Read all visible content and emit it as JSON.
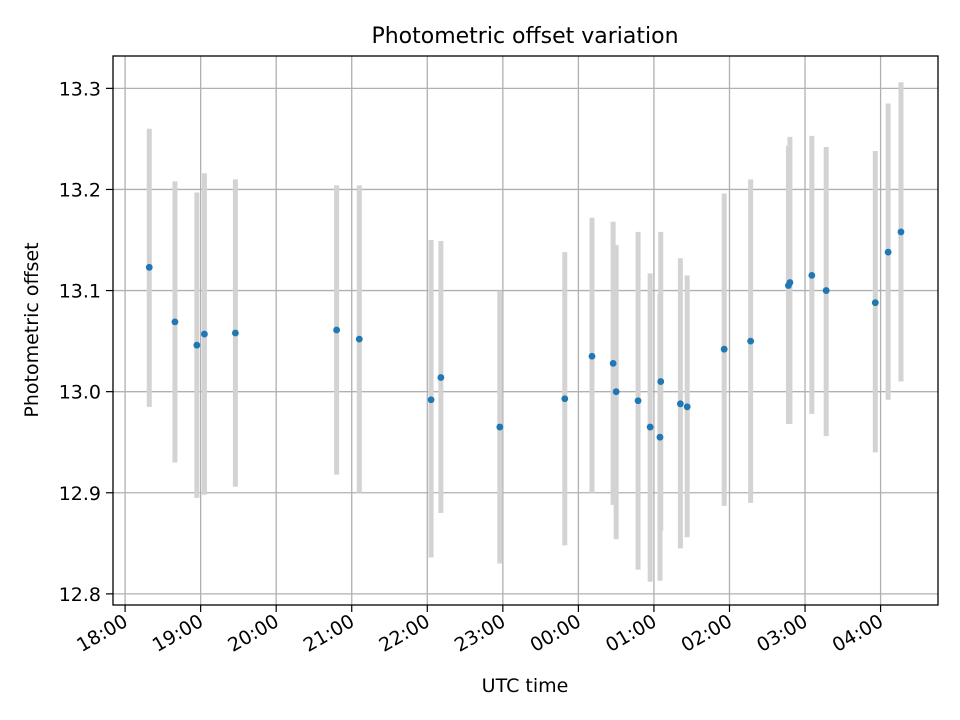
{
  "chart_data": {
    "type": "scatter",
    "title": "Photometric offset variation",
    "xlabel": "UTC time",
    "ylabel": "Photometric offset",
    "x_unit": "hours",
    "x_ticks": [
      {
        "value": 18,
        "label": "18:00"
      },
      {
        "value": 19,
        "label": "19:00"
      },
      {
        "value": 20,
        "label": "20:00"
      },
      {
        "value": 21,
        "label": "21:00"
      },
      {
        "value": 22,
        "label": "22:00"
      },
      {
        "value": 23,
        "label": "23:00"
      },
      {
        "value": 24,
        "label": "00:00"
      },
      {
        "value": 25,
        "label": "01:00"
      },
      {
        "value": 26,
        "label": "02:00"
      },
      {
        "value": 27,
        "label": "03:00"
      },
      {
        "value": 28,
        "label": "04:00"
      }
    ],
    "y_ticks": [
      {
        "value": 12.8,
        "label": "12.8"
      },
      {
        "value": 12.9,
        "label": "12.9"
      },
      {
        "value": 13.0,
        "label": "13.0"
      },
      {
        "value": 13.1,
        "label": "13.1"
      },
      {
        "value": 13.2,
        "label": "13.2"
      },
      {
        "value": 13.3,
        "label": "13.3"
      }
    ],
    "xlim": [
      17.84,
      28.76
    ],
    "ylim": [
      12.789,
      13.332
    ],
    "grid": true,
    "point_color": "#1f77b4",
    "errorbar_color": "#d3d3d3",
    "points": [
      {
        "x": 18.32,
        "y": 13.123,
        "lo": 12.985,
        "hi": 13.26
      },
      {
        "x": 18.66,
        "y": 13.069,
        "lo": 12.93,
        "hi": 13.208
      },
      {
        "x": 18.95,
        "y": 13.046,
        "lo": 12.895,
        "hi": 13.197
      },
      {
        "x": 19.05,
        "y": 13.057,
        "lo": 12.898,
        "hi": 13.216
      },
      {
        "x": 19.46,
        "y": 13.058,
        "lo": 12.906,
        "hi": 13.21
      },
      {
        "x": 20.8,
        "y": 13.061,
        "lo": 12.918,
        "hi": 13.204
      },
      {
        "x": 21.1,
        "y": 13.052,
        "lo": 12.9,
        "hi": 13.204
      },
      {
        "x": 22.05,
        "y": 12.992,
        "lo": 12.836,
        "hi": 13.15
      },
      {
        "x": 22.18,
        "y": 13.014,
        "lo": 12.88,
        "hi": 13.149
      },
      {
        "x": 22.96,
        "y": 12.965,
        "lo": 12.83,
        "hi": 13.1
      },
      {
        "x": 23.82,
        "y": 12.993,
        "lo": 12.848,
        "hi": 13.138
      },
      {
        "x": 24.18,
        "y": 13.035,
        "lo": 12.9,
        "hi": 13.172
      },
      {
        "x": 24.46,
        "y": 13.028,
        "lo": 12.888,
        "hi": 13.168
      },
      {
        "x": 24.5,
        "y": 13.0,
        "lo": 12.854,
        "hi": 13.145
      },
      {
        "x": 24.79,
        "y": 12.991,
        "lo": 12.824,
        "hi": 13.158
      },
      {
        "x": 24.95,
        "y": 12.965,
        "lo": 12.812,
        "hi": 13.117
      },
      {
        "x": 25.08,
        "y": 12.955,
        "lo": 12.813,
        "hi": 13.097
      },
      {
        "x": 25.09,
        "y": 13.01,
        "lo": 12.862,
        "hi": 13.158
      },
      {
        "x": 25.35,
        "y": 12.988,
        "lo": 12.845,
        "hi": 13.132
      },
      {
        "x": 25.44,
        "y": 12.985,
        "lo": 12.856,
        "hi": 13.115
      },
      {
        "x": 25.93,
        "y": 13.042,
        "lo": 12.887,
        "hi": 13.196
      },
      {
        "x": 26.28,
        "y": 13.05,
        "lo": 12.89,
        "hi": 13.21
      },
      {
        "x": 26.78,
        "y": 13.105,
        "lo": 12.968,
        "hi": 13.243
      },
      {
        "x": 26.8,
        "y": 13.108,
        "lo": 12.968,
        "hi": 13.252
      },
      {
        "x": 27.09,
        "y": 13.115,
        "lo": 12.978,
        "hi": 13.253
      },
      {
        "x": 27.28,
        "y": 13.1,
        "lo": 12.956,
        "hi": 13.242
      },
      {
        "x": 27.93,
        "y": 13.088,
        "lo": 12.94,
        "hi": 13.238
      },
      {
        "x": 28.1,
        "y": 13.138,
        "lo": 12.992,
        "hi": 13.285
      },
      {
        "x": 28.27,
        "y": 13.158,
        "lo": 13.01,
        "hi": 13.306
      }
    ]
  }
}
